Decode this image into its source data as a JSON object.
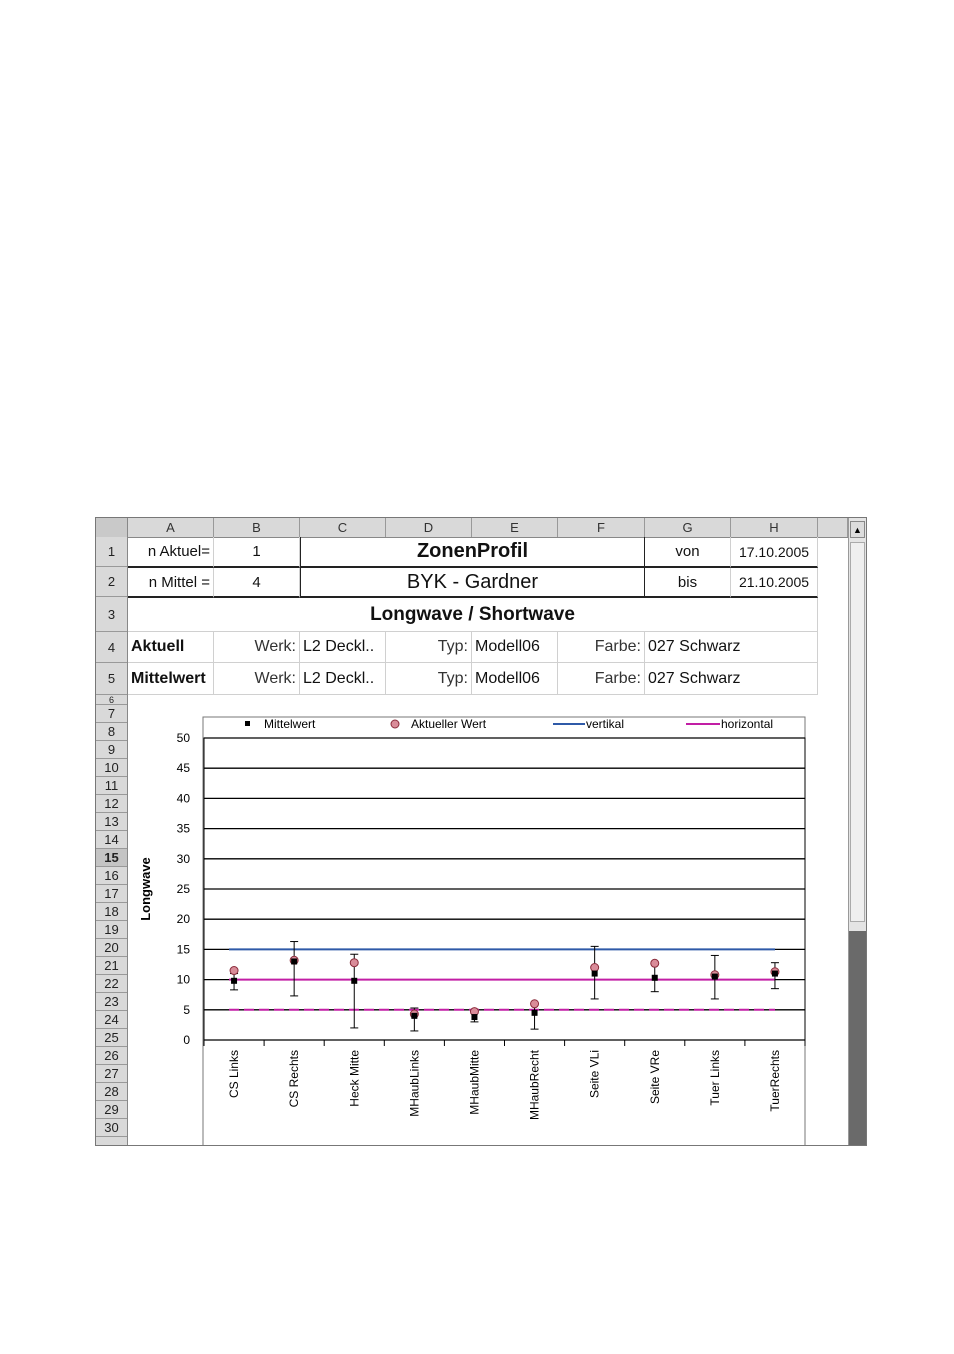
{
  "spreadsheet": {
    "columns": [
      "A",
      "B",
      "C",
      "D",
      "E",
      "F",
      "G",
      "H"
    ],
    "rows": [
      "1",
      "2",
      "3",
      "4",
      "5",
      "6",
      "7",
      "8",
      "9",
      "10",
      "11",
      "12",
      "13",
      "14",
      "15",
      "16",
      "17",
      "18",
      "19",
      "20",
      "21",
      "22",
      "23",
      "24",
      "25",
      "26",
      "27",
      "28",
      "29",
      "30"
    ],
    "active_row": "15",
    "cells": {
      "a1": "n Aktuel=",
      "b1": "1",
      "title1": "ZonenProfil",
      "g1": "von",
      "h1": "17.10.2005",
      "a2": "n Mittel =",
      "b2": "4",
      "title2": "BYK - Gardner",
      "g2": "bis",
      "h2": "21.10.2005",
      "title3": "Longwave / Shortwave",
      "a4": "Aktuell",
      "b4": "Werk:",
      "c4": "L2 Deckl..",
      "d4": "Typ:",
      "e4": "Modell06",
      "f4": "Farbe:",
      "g4": "027 Schwarz",
      "a5": "Mittelwert",
      "b5": "Werk:",
      "c5": "L2 Deckl..",
      "d5": "Typ:",
      "e5": "Modell06",
      "f5": "Farbe:",
      "g5": "027 Schwarz"
    }
  },
  "chart_data": {
    "type": "scatter",
    "ylabel": "Longwave",
    "ylim": [
      0,
      50
    ],
    "yticks": [
      "0",
      "5",
      "10",
      "15",
      "20",
      "25",
      "30",
      "35",
      "40",
      "45",
      "50"
    ],
    "grid": true,
    "legend_position": "top",
    "categories": [
      "CS Links",
      "CS Rechts",
      "Heck Mitte",
      "MHaubLinks",
      "MHaubMitte",
      "MHaubRecht",
      "Seite VLi",
      "Seite VRe",
      "Tuer Links",
      "TuerRechts"
    ],
    "series": [
      {
        "name": "Mittelwert",
        "values": [
          9.8,
          13.0,
          9.8,
          4.0,
          3.8,
          4.5,
          11.0,
          10.3,
          10.5,
          11.0
        ],
        "err_low": [
          8.3,
          7.3,
          2.0,
          1.5,
          3.0,
          1.8,
          6.8,
          8.0,
          6.8,
          8.5
        ],
        "err_high": [
          11.0,
          16.3,
          14.2,
          5.3,
          4.7,
          6.2,
          15.5,
          12.5,
          14.0,
          12.8
        ]
      },
      {
        "name": "Aktueller Wert",
        "values": [
          11.5,
          13.2,
          12.8,
          4.3,
          4.7,
          6.0,
          12.0,
          12.7,
          10.8,
          11.3
        ]
      },
      {
        "name": "vertikal",
        "values": [
          15,
          15
        ]
      },
      {
        "name": "horizontal",
        "values": [
          10,
          10
        ]
      },
      {
        "name": "",
        "values": [
          5,
          5
        ]
      }
    ],
    "colors": {
      "mittelwert": "#000000",
      "aktuell": "#d98c99",
      "aktuell_stroke": "#8a2b3a",
      "vertikal": "#2f5aa8",
      "horizontal": "#c21ea5",
      "grid": "#000000"
    }
  }
}
